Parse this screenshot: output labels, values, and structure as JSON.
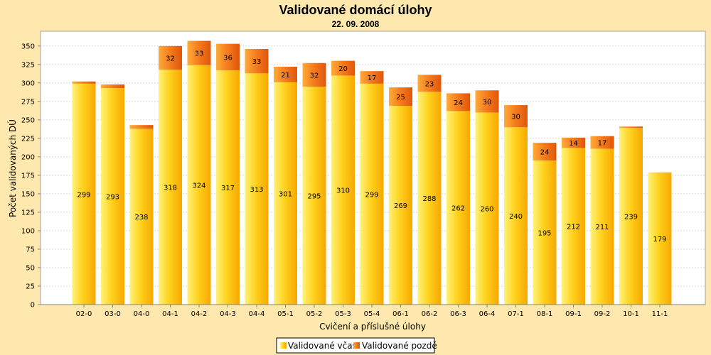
{
  "chart_data": {
    "type": "bar",
    "stacked": true,
    "title": "Validované domácí úlohy",
    "subtitle": "22. 09. 2008",
    "xlabel": "Cvičení a příslušné úlohy",
    "ylabel": "Počet validovaných DÚ",
    "ylim": [
      0,
      370
    ],
    "yticks": [
      0,
      25,
      50,
      75,
      100,
      125,
      150,
      175,
      200,
      225,
      250,
      275,
      300,
      325,
      350
    ],
    "grid": true,
    "legend_position": "bottom",
    "categories": [
      "02-0",
      "03-0",
      "04-0",
      "04-1",
      "04-2",
      "04-3",
      "04-4",
      "05-1",
      "05-2",
      "05-3",
      "05-4",
      "06-1",
      "06-2",
      "06-3",
      "06-4",
      "07-1",
      "08-1",
      "09-1",
      "09-2",
      "10-1",
      "11-1"
    ],
    "series": [
      {
        "name": "Validované včas",
        "color": "#ffd21e",
        "values": [
          299,
          293,
          238,
          318,
          324,
          317,
          313,
          301,
          295,
          310,
          299,
          269,
          288,
          262,
          260,
          240,
          195,
          212,
          211,
          239,
          179
        ],
        "labels": [
          "299",
          "293",
          "238",
          "318",
          "324",
          "317",
          "313",
          "301",
          "295",
          "310",
          "299",
          "269",
          "288",
          "262",
          "260",
          "240",
          "195",
          "212",
          "211",
          "239",
          "179"
        ]
      },
      {
        "name": "Validované pozdě",
        "color": "#f47a1c",
        "values": [
          3,
          5,
          5,
          32,
          33,
          36,
          33,
          21,
          32,
          20,
          17,
          25,
          23,
          24,
          30,
          30,
          24,
          14,
          17,
          2,
          0
        ],
        "labels": [
          "",
          "",
          "",
          "32",
          "33",
          "36",
          "33",
          "21",
          "32",
          "20",
          "17",
          "25",
          "23",
          "24",
          "30",
          "30",
          "24",
          "14",
          "17",
          "",
          ""
        ]
      }
    ]
  }
}
